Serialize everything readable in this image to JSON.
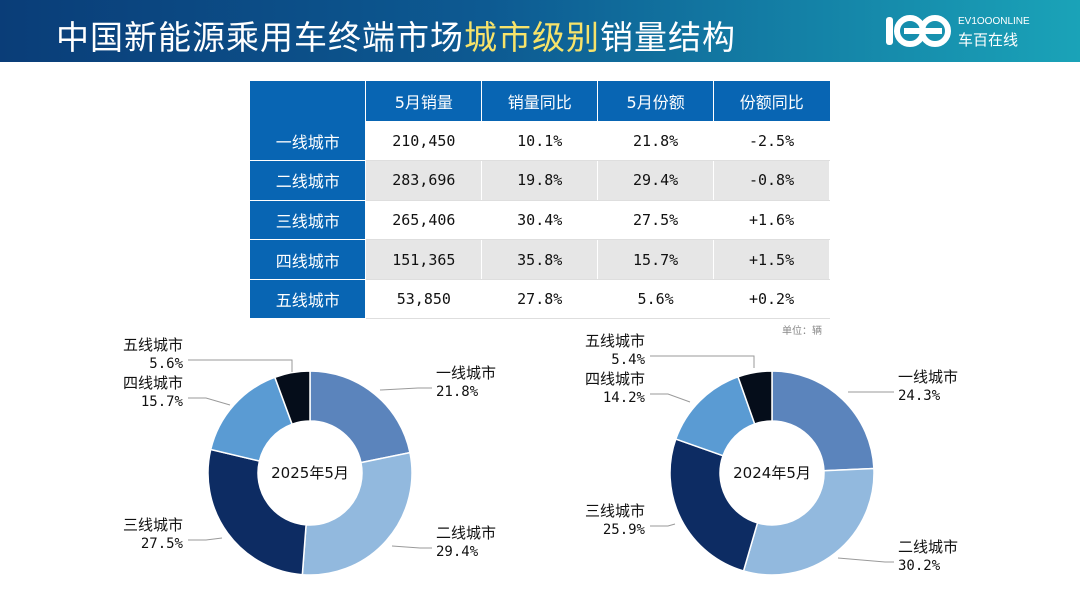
{
  "title": {
    "prefix": "中国新能源乘用车终端市场",
    "highlight": "城市级别",
    "suffix": "销量结构"
  },
  "logo": {
    "en": "EV1OOONLINE",
    "cn": "车百在线"
  },
  "table": {
    "headers": [
      "",
      "5月销量",
      "销量同比",
      "5月份额",
      "份额同比"
    ],
    "rows": [
      [
        "一线城市",
        "210,450",
        "10.1%",
        "21.8%",
        "-2.5%"
      ],
      [
        "二线城市",
        "283,696",
        "19.8%",
        "29.4%",
        "-0.8%"
      ],
      [
        "三线城市",
        "265,406",
        "30.4%",
        "27.5%",
        "+1.6%"
      ],
      [
        "四线城市",
        "151,365",
        "35.8%",
        "15.7%",
        "+1.5%"
      ],
      [
        "五线城市",
        "53,850",
        "27.8%",
        "5.6%",
        "+0.2%"
      ]
    ],
    "unit": "单位：辆"
  },
  "colors": {
    "一线城市": "#5b84bc",
    "二线城市": "#92b9de",
    "三线城市": "#0d2c63",
    "四线城市": "#5a9bd3",
    "五线城市": "#050d1a"
  },
  "chart_data": [
    {
      "type": "pie",
      "center_label": "2025年5月",
      "categories": [
        "一线城市",
        "二线城市",
        "三线城市",
        "四线城市",
        "五线城市"
      ],
      "values": [
        21.8,
        29.4,
        27.5,
        15.7,
        5.6
      ],
      "labels": [
        "21.8%",
        "29.4%",
        "27.5%",
        "15.7%",
        "5.6%"
      ]
    },
    {
      "type": "pie",
      "center_label": "2024年5月",
      "categories": [
        "一线城市",
        "二线城市",
        "三线城市",
        "四线城市",
        "五线城市"
      ],
      "values": [
        24.3,
        30.2,
        25.9,
        14.2,
        5.4
      ],
      "labels": [
        "24.3%",
        "30.2%",
        "25.9%",
        "14.2%",
        "5.4%"
      ]
    }
  ]
}
